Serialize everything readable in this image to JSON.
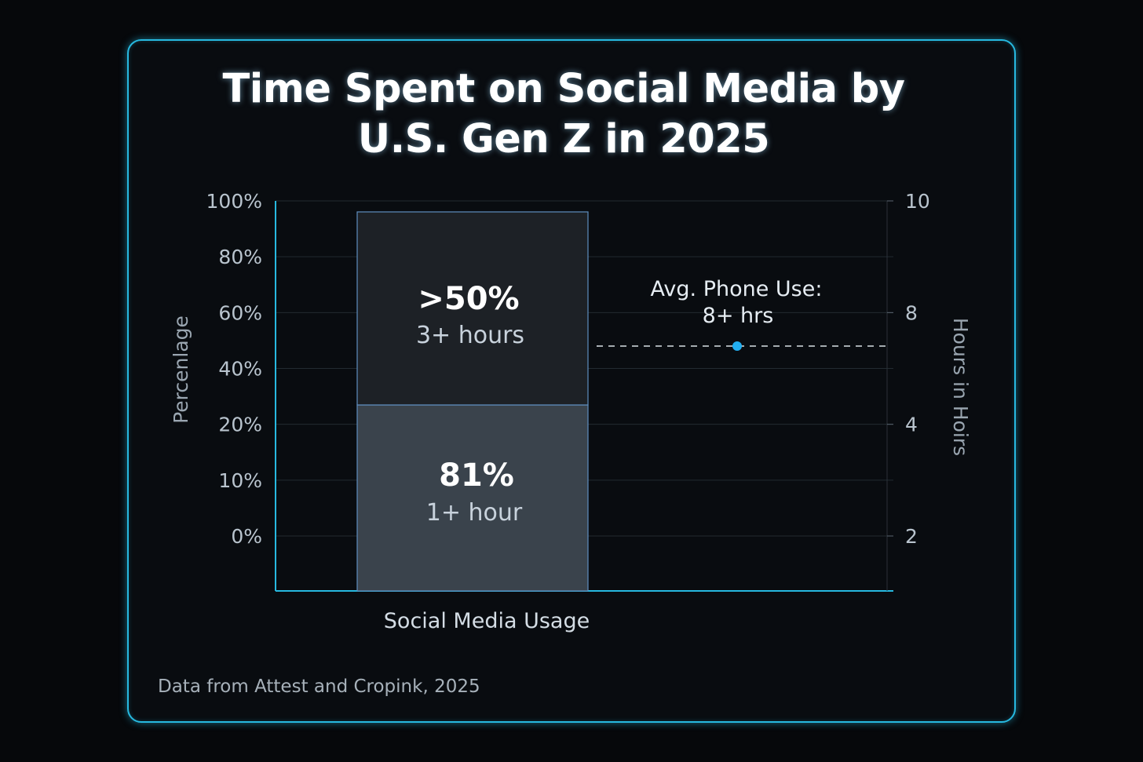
{
  "chart_data": {
    "type": "bar",
    "title": [
      "Time Spent on Social Media by",
      "U.S. Gen Z in 2025"
    ],
    "ylabel": "Percenlage",
    "y2label": "Hours in Hoirs",
    "xlabel": "Social Media Usage",
    "y_ticks": [
      "100%",
      "80%",
      "60%",
      "40%",
      "20%",
      "10%",
      "0%"
    ],
    "y2_ticks": [
      "10",
      "8",
      "4",
      "2"
    ],
    "segments": [
      {
        "value_label": "81%",
        "sub_label": "1+ hour",
        "color": "#3a434c"
      },
      {
        "value_label": ">50%",
        "sub_label": "3+ hours",
        "color": "#1d2126"
      }
    ],
    "annotation": {
      "line1": "Avg. Phone Use:",
      "line2": "8+ hrs",
      "value": 8,
      "color": "#22aef0"
    },
    "grid": true,
    "accent": "#27b9e0"
  },
  "source": "Data from Attest and Cropink, 2025"
}
